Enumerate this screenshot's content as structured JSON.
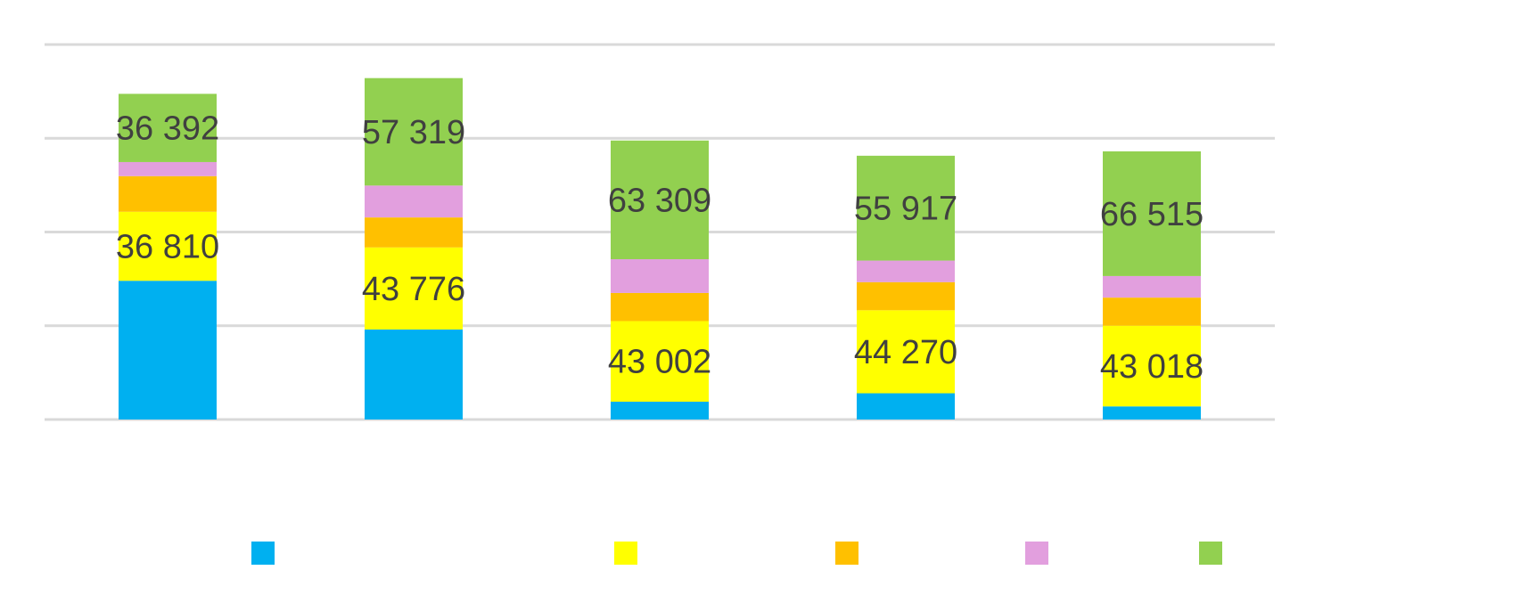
{
  "chart_data": {
    "type": "bar",
    "stacked": true,
    "title": "",
    "xlabel": "",
    "ylabel": "",
    "grid": true,
    "legend_position": "bottom",
    "ylim": [
      0,
      200000
    ],
    "yticks": [
      0,
      50000,
      100000,
      150000,
      200000
    ],
    "categories": [
      "",
      "",
      "",
      "",
      ""
    ],
    "series": [
      {
        "name": "",
        "color": "#00B0F0",
        "values": [
          74000,
          48000,
          9500,
          14000,
          7000
        ],
        "labels": [
          "",
          "",
          "",
          "",
          ""
        ]
      },
      {
        "name": "",
        "color": "#FFFF00",
        "values": [
          36810,
          43776,
          43002,
          44270,
          43018
        ],
        "labels": [
          "36 810",
          "43 776",
          "43 002",
          "44 270",
          "43 018"
        ]
      },
      {
        "name": "",
        "color": "#FFC000",
        "values": [
          19000,
          16000,
          15000,
          15000,
          15000
        ],
        "labels": [
          "",
          "",
          "",
          "",
          ""
        ]
      },
      {
        "name": "",
        "color": "#E29FDE",
        "values": [
          7500,
          17000,
          18000,
          11500,
          11500
        ],
        "labels": [
          "",
          "",
          "",
          "",
          ""
        ]
      },
      {
        "name": "",
        "color": "#92D050",
        "values": [
          36392,
          57319,
          63309,
          55917,
          66515
        ],
        "labels": [
          "36 392",
          "57 319",
          "63 309",
          "55 917",
          "66 515"
        ]
      }
    ]
  }
}
